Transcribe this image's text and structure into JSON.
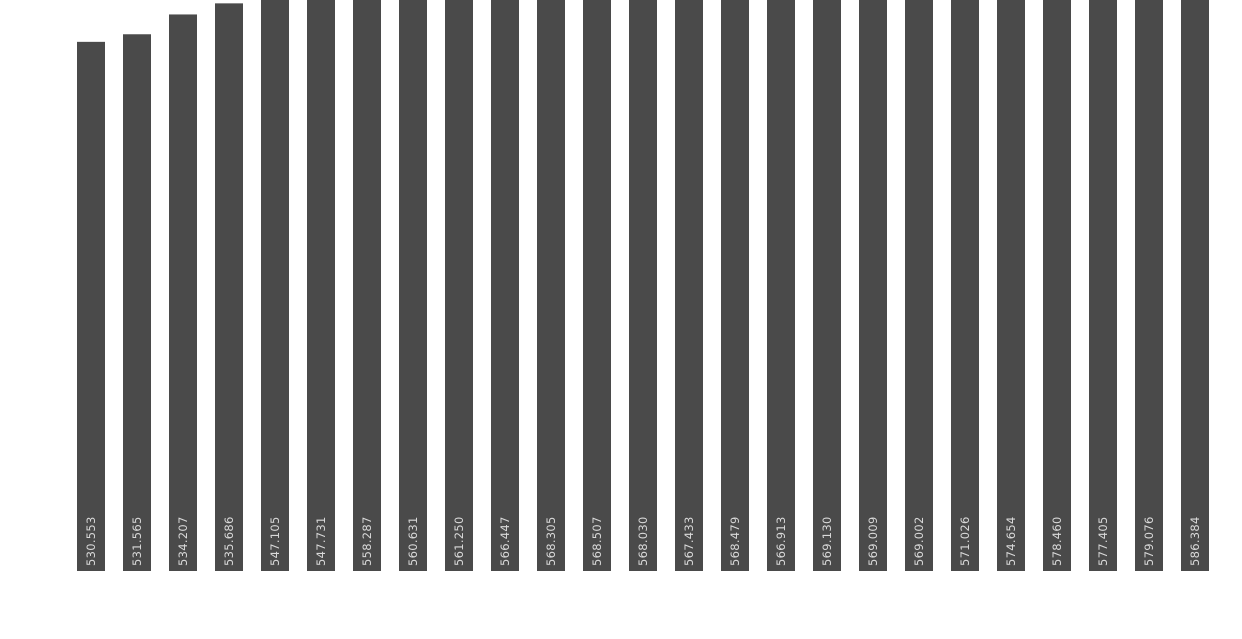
{
  "chart_data": {
    "type": "bar",
    "title": "",
    "xlabel": "",
    "ylabel": "",
    "ylim": [
      460,
      600
    ],
    "grid": false,
    "legend": "none",
    "bar_color": "#4a4a4a",
    "label_color": "#d9d9d9",
    "background": "#ffffff",
    "values": [
      530.553,
      531.565,
      534.207,
      535.686,
      547.105,
      547.731,
      558.287,
      560.631,
      561.25,
      566.447,
      568.305,
      568.507,
      568.03,
      567.433,
      568.479,
      566.913,
      569.13,
      569.009,
      569.002,
      571.026,
      574.654,
      578.46,
      577.405,
      579.076,
      586.384
    ],
    "labels": [
      "530.553",
      "531.565",
      "534.207",
      "535.686",
      "547.105",
      "547.731",
      "558.287",
      "560.631",
      "561.250",
      "566.447",
      "568.305",
      "568.507",
      "568.030",
      "567.433",
      "568.479",
      "566.913",
      "569.130",
      "569.009",
      "569.002",
      "571.026",
      "574.654",
      "578.460",
      "577.405",
      "579.076",
      "586.384"
    ]
  }
}
